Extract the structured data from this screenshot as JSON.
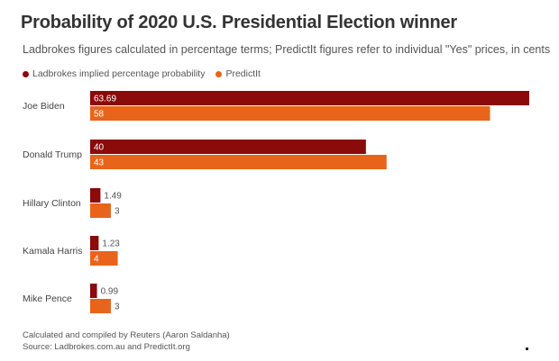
{
  "title": "Probability of 2020 U.S. Presidential Election winner",
  "subtitle": "Ladbrokes figures calculated in percentage terms; PredictIt figures refer to individual \"Yes\" prices, in cents",
  "footer": {
    "line1": "Calculated and compiled by Reuters (Aaron Saldanha)",
    "line2": "Source: Ladbrokes.com.au and PredictIt.org"
  },
  "chart_data": {
    "type": "bar",
    "orientation": "horizontal",
    "categories": [
      "Joe Biden",
      "Donald Trump",
      "Hillary Clinton",
      "Kamala Harris",
      "Mike Pence"
    ],
    "series": [
      {
        "name": "Ladbrokes implied percentage probability",
        "color": "#8b0a0a",
        "values": [
          63.69,
          40,
          1.49,
          1.23,
          0.99
        ],
        "labels": [
          "63.69",
          "40",
          "1.49",
          "1.23",
          "0.99"
        ]
      },
      {
        "name": "PredictIt",
        "color": "#e8641a",
        "values": [
          58,
          43,
          3,
          4,
          3
        ],
        "labels": [
          "58",
          "43",
          "3",
          "4",
          "3"
        ]
      }
    ],
    "xlim": [
      0,
      63.69
    ],
    "grid": false,
    "legend_position": "top-left"
  }
}
